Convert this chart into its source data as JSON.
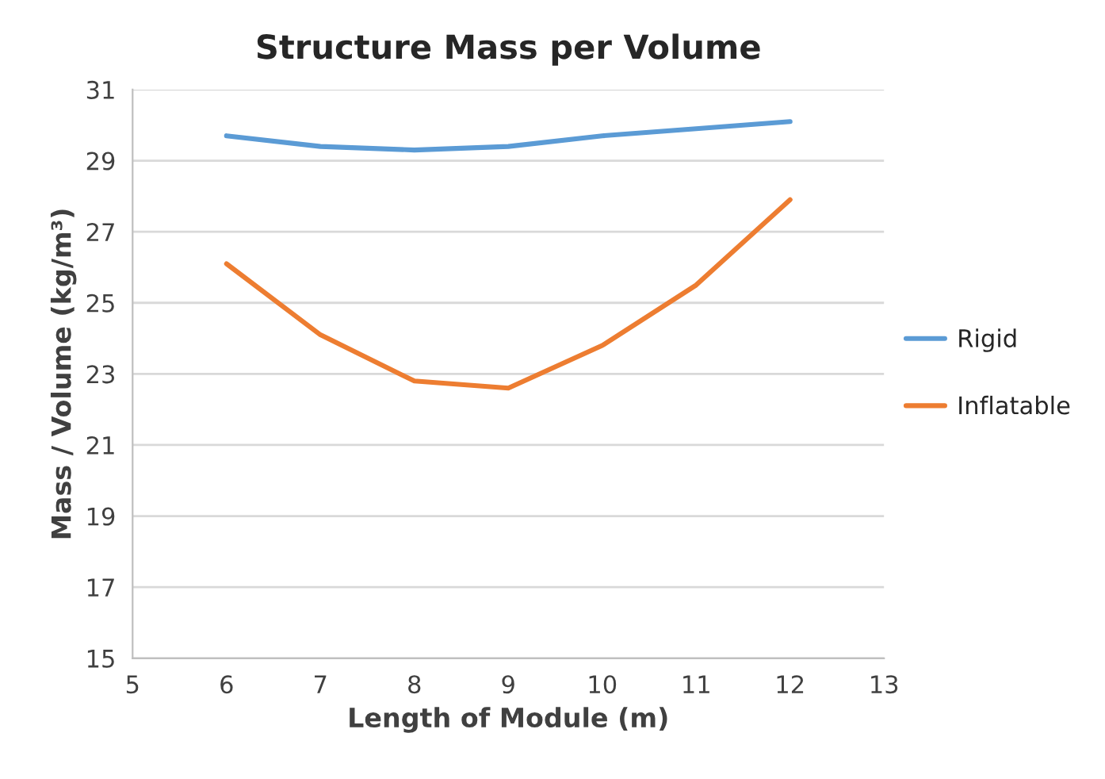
{
  "chart_data": {
    "type": "line",
    "title": "Structure Mass per Volume",
    "xlabel": "Length of Module (m)",
    "ylabel": "Mass / Volume (kg/m³)",
    "x": [
      6,
      7,
      8,
      9,
      10,
      11,
      12
    ],
    "series": [
      {
        "name": "Rigid",
        "color": "#5b9bd5",
        "values": [
          29.7,
          29.4,
          29.3,
          29.4,
          29.7,
          29.9,
          30.1
        ]
      },
      {
        "name": "Inflatable",
        "color": "#ed7d31",
        "values": [
          26.1,
          24.1,
          22.8,
          22.6,
          23.8,
          25.5,
          27.9
        ]
      }
    ],
    "xlim": [
      5,
      13
    ],
    "xticks": [
      5,
      6,
      7,
      8,
      9,
      10,
      11,
      12,
      13
    ],
    "ylim": [
      15,
      31
    ],
    "yticks": [
      15,
      17,
      19,
      21,
      23,
      25,
      27,
      29,
      31
    ],
    "grid": "y",
    "legend": "right",
    "marker": "none",
    "line_style": "solid"
  }
}
